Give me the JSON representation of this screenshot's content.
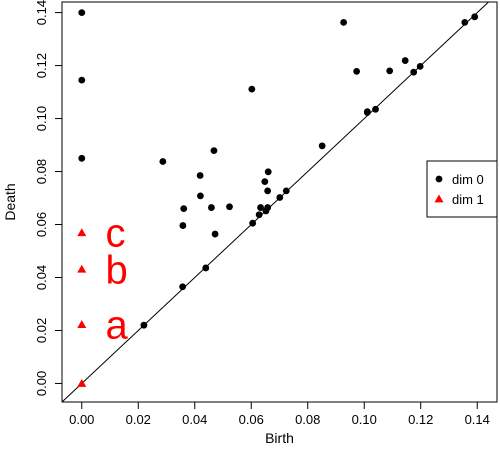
{
  "chart_data": {
    "type": "scatter",
    "title": "",
    "xlabel": "Birth",
    "ylabel": "Death",
    "xlim": [
      -0.007,
      0.147
    ],
    "ylim": [
      -0.007,
      0.144
    ],
    "xticks": [
      0.0,
      0.02,
      0.04,
      0.06,
      0.08,
      0.1,
      0.12,
      0.14
    ],
    "yticks": [
      0.0,
      0.02,
      0.04,
      0.06,
      0.08,
      0.1,
      0.12,
      0.14
    ],
    "xtick_labels": [
      "0.00",
      "0.02",
      "0.04",
      "0.06",
      "0.08",
      "0.10",
      "0.12",
      "0.14"
    ],
    "ytick_labels": [
      "0.00",
      "0.02",
      "0.04",
      "0.06",
      "0.08",
      "0.10",
      "0.12",
      "0.14"
    ],
    "diagonal": true,
    "grid": false,
    "legend_position": "right",
    "series": [
      {
        "name": "dim 0",
        "marker": "circle",
        "color": "#000000",
        "points": [
          [
            0.0,
            0.14
          ],
          [
            0.0,
            0.1145
          ],
          [
            0.0,
            0.085
          ],
          [
            0.022,
            0.022
          ],
          [
            0.0287,
            0.0838
          ],
          [
            0.0357,
            0.0365
          ],
          [
            0.0358,
            0.0596
          ],
          [
            0.0361,
            0.066
          ],
          [
            0.0419,
            0.0785
          ],
          [
            0.042,
            0.0708
          ],
          [
            0.0439,
            0.0436
          ],
          [
            0.0459,
            0.0664
          ],
          [
            0.0468,
            0.0879
          ],
          [
            0.0472,
            0.0564
          ],
          [
            0.0523,
            0.0667
          ],
          [
            0.0602,
            0.1111
          ],
          [
            0.0605,
            0.0605
          ],
          [
            0.0628,
            0.0637
          ],
          [
            0.0633,
            0.0664
          ],
          [
            0.0648,
            0.0762
          ],
          [
            0.0652,
            0.0651
          ],
          [
            0.0658,
            0.0664
          ],
          [
            0.0658,
            0.0727
          ],
          [
            0.066,
            0.0799
          ],
          [
            0.0701,
            0.0702
          ],
          [
            0.0724,
            0.0727
          ],
          [
            0.0851,
            0.0897
          ],
          [
            0.0927,
            0.1363
          ],
          [
            0.0973,
            0.1178
          ],
          [
            0.1011,
            0.1023
          ],
          [
            0.1011,
            0.1026
          ],
          [
            0.104,
            0.1035
          ],
          [
            0.109,
            0.118
          ],
          [
            0.1145,
            0.1219
          ],
          [
            0.1175,
            0.1175
          ],
          [
            0.1198,
            0.1197
          ],
          [
            0.1356,
            0.1363
          ],
          [
            0.1391,
            0.1384
          ]
        ]
      },
      {
        "name": "dim 1",
        "marker": "triangle",
        "color": "#ff0000",
        "points": [
          [
            0.0,
            0.0
          ],
          [
            0.0,
            0.0222
          ],
          [
            0.0,
            0.0431
          ],
          [
            0.0,
            0.0569
          ]
        ]
      }
    ],
    "annotations": [
      {
        "text": "c",
        "x": 0.007,
        "y": 0.0569,
        "color": "#ff0000"
      },
      {
        "text": "b",
        "x": 0.007,
        "y": 0.0431,
        "color": "#ff0000"
      },
      {
        "text": "a",
        "x": 0.007,
        "y": 0.0222,
        "color": "#ff0000"
      }
    ]
  }
}
